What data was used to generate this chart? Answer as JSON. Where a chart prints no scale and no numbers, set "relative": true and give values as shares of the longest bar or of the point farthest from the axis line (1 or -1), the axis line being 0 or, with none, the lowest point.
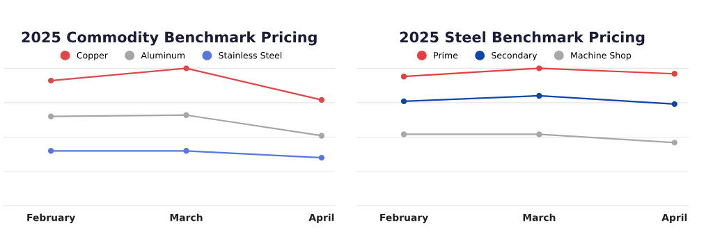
{
  "chart_data": [
    {
      "type": "line",
      "title": "2025 Commodity Benchmark Pricing",
      "relative": true,
      "categories": [
        "February",
        "March",
        "April"
      ],
      "grid": "y",
      "legend": "top",
      "marker": "circle",
      "line_style": "solid",
      "series": [
        {
          "name": "Copper",
          "color": "#e04848",
          "values": [
            0.91,
            1,
            0.77
          ]
        },
        {
          "name": "Aluminum",
          "color": "#a6a6a6",
          "values": [
            0.65,
            0.66,
            0.51
          ]
        },
        {
          "name": "Stainless Steel",
          "color": "#5876e0",
          "values": [
            0.4,
            0.4,
            0.35
          ]
        }
      ]
    },
    {
      "type": "line",
      "title": "2025 Steel Benchmark Pricing",
      "relative": true,
      "categories": [
        "February",
        "March",
        "April"
      ],
      "grid": "y",
      "legend": "top",
      "marker": "circle",
      "line_style": "solid",
      "series": [
        {
          "name": "Prime",
          "color": "#e83e3e",
          "values": [
            0.94,
            1,
            0.96
          ]
        },
        {
          "name": "Secondary",
          "color": "#0d47a8",
          "values": [
            0.76,
            0.8,
            0.74
          ]
        },
        {
          "name": "Machine Shop",
          "color": "#a8a8a8",
          "values": [
            0.52,
            0.52,
            0.46
          ]
        }
      ]
    }
  ]
}
